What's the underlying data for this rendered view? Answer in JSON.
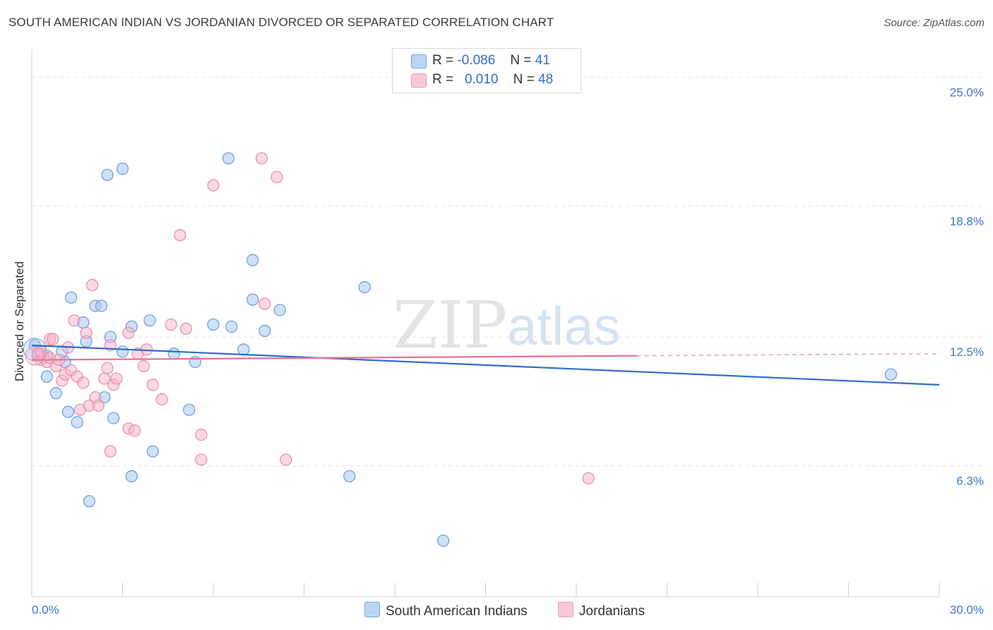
{
  "title": "SOUTH AMERICAN INDIAN VS JORDANIAN DIVORCED OR SEPARATED CORRELATION CHART",
  "source": "Source: ZipAtlas.com",
  "watermark": {
    "zip": "ZIP",
    "atlas": "atlas"
  },
  "legend": {
    "rows": [
      {
        "r_label": "R =",
        "r_value": "-0.086",
        "n_label": "N =",
        "n_value": "41"
      },
      {
        "r_label": "R =",
        "r_value": "0.010",
        "n_label": "N =",
        "n_value": "48"
      }
    ]
  },
  "bottom_legend": {
    "series_a": "South American Indians",
    "series_b": "Jordanians"
  },
  "colors": {
    "blue_fill": "#a8c8f0",
    "blue_stroke": "#6a9ad8",
    "blue_line": "#2f6ccc",
    "pink_fill": "#f5b8cc",
    "pink_stroke": "#e889a8",
    "pink_line": "#e8709a",
    "grid": "#e2e2e2",
    "tick_label": "#3c78c8"
  },
  "chart_data": {
    "type": "scatter",
    "xlabel": "",
    "ylabel": "Divorced or Separated",
    "xlim": [
      0,
      30
    ],
    "ylim": [
      0,
      26
    ],
    "x_tick_labels": [
      "0.0%",
      "30.0%"
    ],
    "y_ticks": [
      6.3,
      12.5,
      18.8,
      25.0
    ],
    "y_tick_labels": [
      "6.3%",
      "12.5%",
      "18.8%",
      "25.0%"
    ],
    "grid": "horizontal dashed",
    "legend_position": "top-center",
    "series": [
      {
        "name": "South American Indians",
        "color": "#a8c8f0",
        "points": [
          [
            0.1,
            12.1
          ],
          [
            0.3,
            11.7
          ],
          [
            0.5,
            11.6
          ],
          [
            0.5,
            10.6
          ],
          [
            0.8,
            9.8
          ],
          [
            1.0,
            11.8
          ],
          [
            1.1,
            11.3
          ],
          [
            1.2,
            8.9
          ],
          [
            1.3,
            14.4
          ],
          [
            1.5,
            8.4
          ],
          [
            1.7,
            13.2
          ],
          [
            1.8,
            12.3
          ],
          [
            2.1,
            14.0
          ],
          [
            2.3,
            14.0
          ],
          [
            2.4,
            9.6
          ],
          [
            2.5,
            20.3
          ],
          [
            2.6,
            12.5
          ],
          [
            2.7,
            8.6
          ],
          [
            3.0,
            20.6
          ],
          [
            3.0,
            11.8
          ],
          [
            3.3,
            5.8
          ],
          [
            3.3,
            13.0
          ],
          [
            4.0,
            7.0
          ],
          [
            3.9,
            13.3
          ],
          [
            1.9,
            4.6
          ],
          [
            4.7,
            11.7
          ],
          [
            5.2,
            9.0
          ],
          [
            5.4,
            11.3
          ],
          [
            6.0,
            13.1
          ],
          [
            6.5,
            21.1
          ],
          [
            6.6,
            13.0
          ],
          [
            7.0,
            11.9
          ],
          [
            7.3,
            16.2
          ],
          [
            7.3,
            14.3
          ],
          [
            7.7,
            12.8
          ],
          [
            8.2,
            13.8
          ],
          [
            11.0,
            14.9
          ],
          [
            10.5,
            5.8
          ],
          [
            13.6,
            2.7
          ],
          [
            28.4,
            10.7
          ],
          [
            0.2,
            11.6
          ]
        ],
        "trend": {
          "x": [
            0,
            30
          ],
          "y": [
            12.1,
            10.2
          ]
        }
      },
      {
        "name": "Jordanians",
        "color": "#f5b8cc",
        "points": [
          [
            0.2,
            11.7
          ],
          [
            0.3,
            11.4
          ],
          [
            0.4,
            11.5
          ],
          [
            0.5,
            11.3
          ],
          [
            0.6,
            11.5
          ],
          [
            0.6,
            12.4
          ],
          [
            0.7,
            12.4
          ],
          [
            0.8,
            11.1
          ],
          [
            0.9,
            11.4
          ],
          [
            1.0,
            10.4
          ],
          [
            1.1,
            10.7
          ],
          [
            1.2,
            12.0
          ],
          [
            1.3,
            10.9
          ],
          [
            1.4,
            13.3
          ],
          [
            1.5,
            10.6
          ],
          [
            1.6,
            9.0
          ],
          [
            1.7,
            10.3
          ],
          [
            1.8,
            12.7
          ],
          [
            1.9,
            9.2
          ],
          [
            2.0,
            15.0
          ],
          [
            2.1,
            9.6
          ],
          [
            2.2,
            9.2
          ],
          [
            2.4,
            10.5
          ],
          [
            2.5,
            11.0
          ],
          [
            2.6,
            12.1
          ],
          [
            2.6,
            7.0
          ],
          [
            2.7,
            10.2
          ],
          [
            2.8,
            10.5
          ],
          [
            3.2,
            8.1
          ],
          [
            3.2,
            12.7
          ],
          [
            3.4,
            8.0
          ],
          [
            3.5,
            11.7
          ],
          [
            3.7,
            11.1
          ],
          [
            3.8,
            11.9
          ],
          [
            4.0,
            10.2
          ],
          [
            4.3,
            9.5
          ],
          [
            4.6,
            13.1
          ],
          [
            4.9,
            17.4
          ],
          [
            5.1,
            12.9
          ],
          [
            5.6,
            7.8
          ],
          [
            5.6,
            6.6
          ],
          [
            6.0,
            19.8
          ],
          [
            7.6,
            21.1
          ],
          [
            7.7,
            14.1
          ],
          [
            8.1,
            20.2
          ],
          [
            8.4,
            6.6
          ],
          [
            18.4,
            5.7
          ],
          [
            0.3,
            11.8
          ]
        ],
        "trend": {
          "x": [
            0,
            20
          ],
          "y": [
            11.4,
            11.6
          ]
        },
        "trend_extension": {
          "x": [
            20,
            30
          ],
          "y": [
            11.6,
            11.7
          ]
        }
      }
    ]
  }
}
